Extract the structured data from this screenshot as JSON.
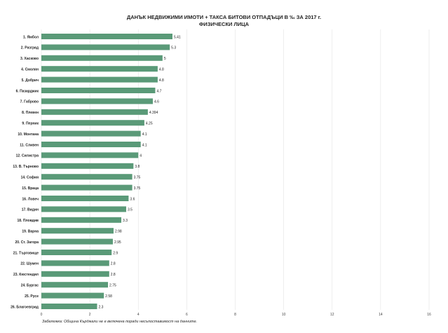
{
  "chart_data": {
    "type": "bar",
    "orientation": "horizontal",
    "title": "ДАНЪК НЕДВИЖИМИ ИМОТИ + ТАКСА БИТОВИ ОТПАДЪЦИ В ‰ ЗА 2017 г.",
    "subtitle": "ФИЗИЧЕСКИ ЛИЦА",
    "categories": [
      "1. Ямбол",
      "2. Разград",
      "3. Хасково",
      "4. Смолян",
      "5. Добрич",
      "6. Пазарджик",
      "7. Габрово",
      "8. Плевен",
      "9. Перник",
      "10. Монтана",
      "11. Сливен",
      "12. Силистра",
      "13. В. Търново",
      "14. София",
      "15. Враца",
      "16. Ловеч",
      "17. Видин",
      "18. Пловдив",
      "19. Варна",
      "20. Ст. Загора",
      "21. Търговище",
      "22. Шумен",
      "23. Кюстендил",
      "24. Бургас",
      "25. Русе",
      "26. Благоевград"
    ],
    "values": [
      5.41,
      5.3,
      5,
      4.8,
      4.8,
      4.7,
      4.6,
      4.394,
      4.25,
      4.1,
      4.1,
      4,
      3.8,
      3.75,
      3.75,
      3.6,
      3.5,
      3.3,
      2.98,
      2.95,
      2.9,
      2.8,
      2.8,
      2.75,
      2.58,
      2.3
    ],
    "value_labels": [
      "5.41",
      "5.3",
      "5",
      "4.8",
      "4.8",
      "4.7",
      "4.6",
      "4.394",
      "4.25",
      "4.1",
      "4.1",
      "4",
      "3.8",
      "3.75",
      "3.75",
      "3.6",
      "3.5",
      "3.3",
      "2.98",
      "2.95",
      "2.9",
      "2.8",
      "2.8",
      "2.75",
      "2.58",
      "2.3"
    ],
    "xlim": [
      0,
      16
    ],
    "xticks": [
      "0",
      "2",
      "4",
      "6",
      "8",
      "10",
      "12",
      "14",
      "16"
    ],
    "grid": true,
    "legend": "none",
    "bar_color": "#5a9a78",
    "note": "Забележка: Община Кърджали не е включена поради несъпоставимост на данните."
  }
}
